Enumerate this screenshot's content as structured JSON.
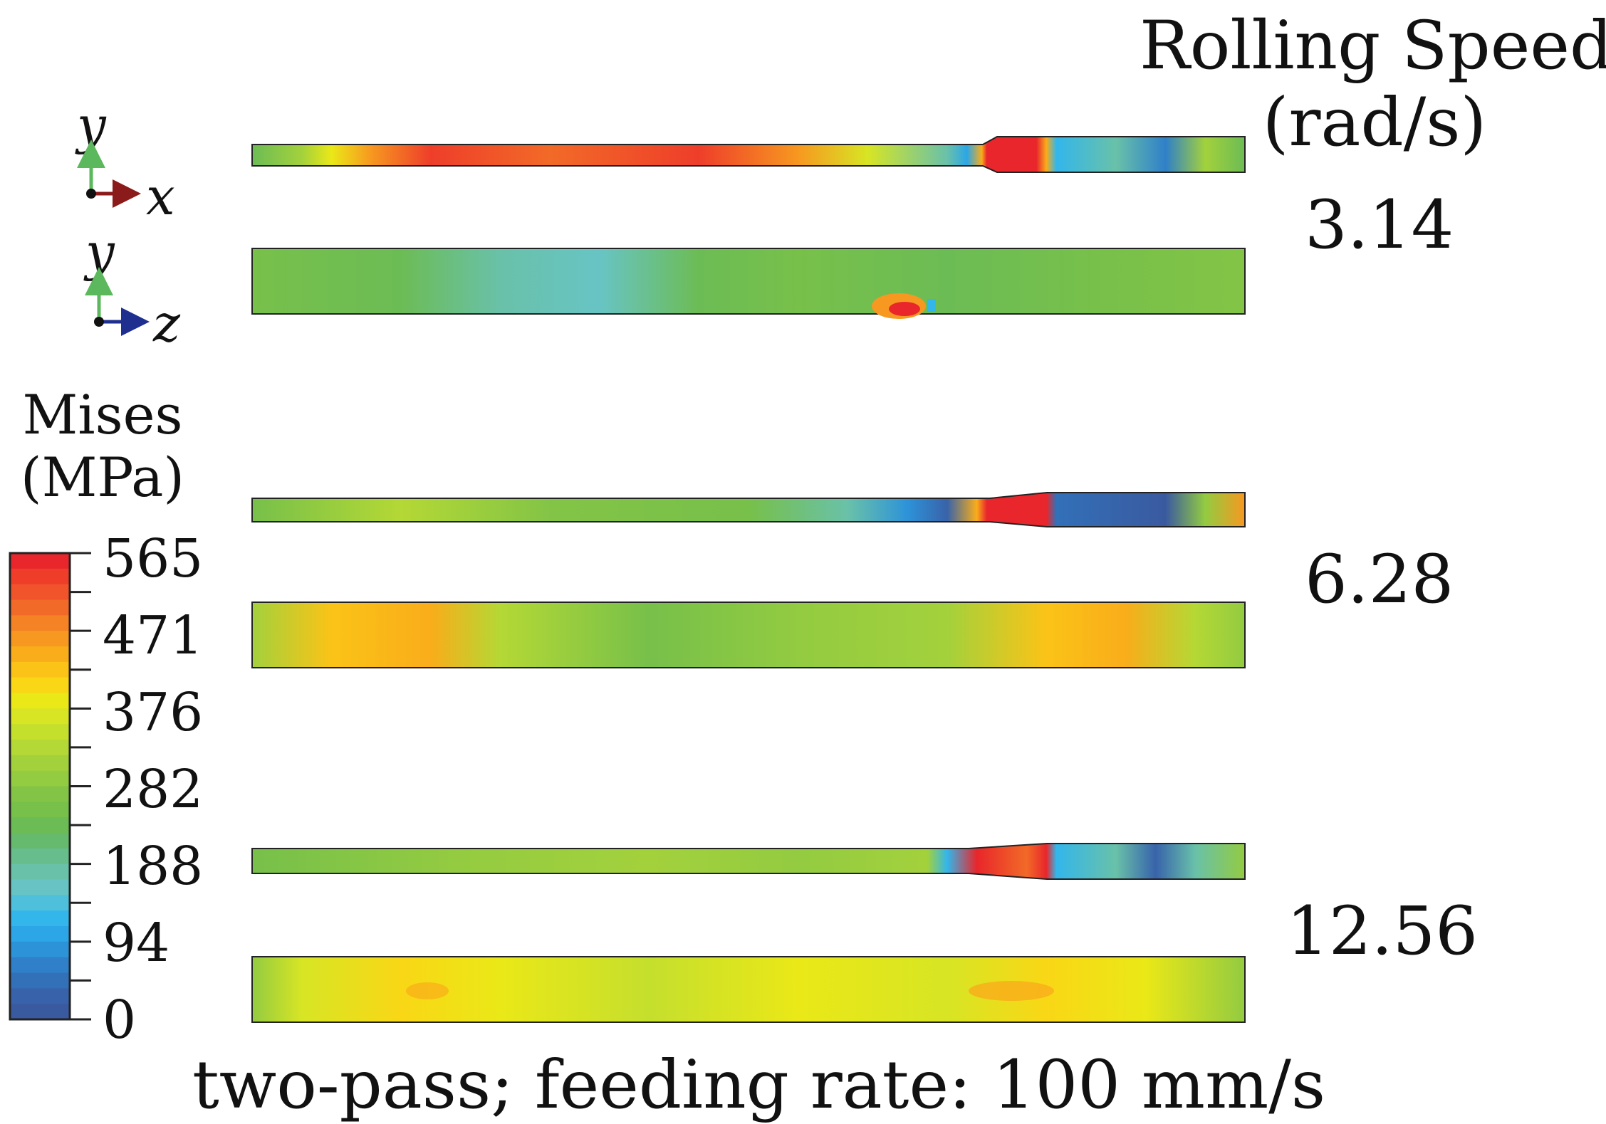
{
  "rolling_speed": {
    "title_line1": "Rolling Speed",
    "title_line2": "(rad/s)",
    "values": [
      "3.14",
      "6.28",
      "12.56"
    ]
  },
  "triads": [
    {
      "vertical": "y",
      "horizontal": "x",
      "horizontal_color": "#8b1a1a",
      "vertical_color": "#5cb85c"
    },
    {
      "vertical": "y",
      "horizontal": "z",
      "horizontal_color": "#1f2f8f",
      "vertical_color": "#5cb85c"
    }
  ],
  "legend": {
    "title_line1": "Mises",
    "title_line2": "(MPa)",
    "ticks": [
      "565",
      "471",
      "376",
      "282",
      "188",
      "94",
      "0"
    ],
    "colors": [
      "#e8262b",
      "#ee3e2a",
      "#f1532a",
      "#f26a27",
      "#f58225",
      "#f79820",
      "#f9ad1a",
      "#fbc317",
      "#f9d716",
      "#eae817",
      "#d7e524",
      "#c5df2d",
      "#b4d835",
      "#a3d13c",
      "#93cb41",
      "#83c446",
      "#77c04a",
      "#6cbc55",
      "#65ba6e",
      "#67bd8c",
      "#69c1a9",
      "#68c4c4",
      "#4fc0dc",
      "#33b6ea",
      "#2ca6e6",
      "#2d93d8",
      "#2f80c8",
      "#3270b8",
      "#3863aa",
      "#3a5aa0"
    ]
  },
  "caption": "two-pass; feeding rate: 100 mm/s"
}
